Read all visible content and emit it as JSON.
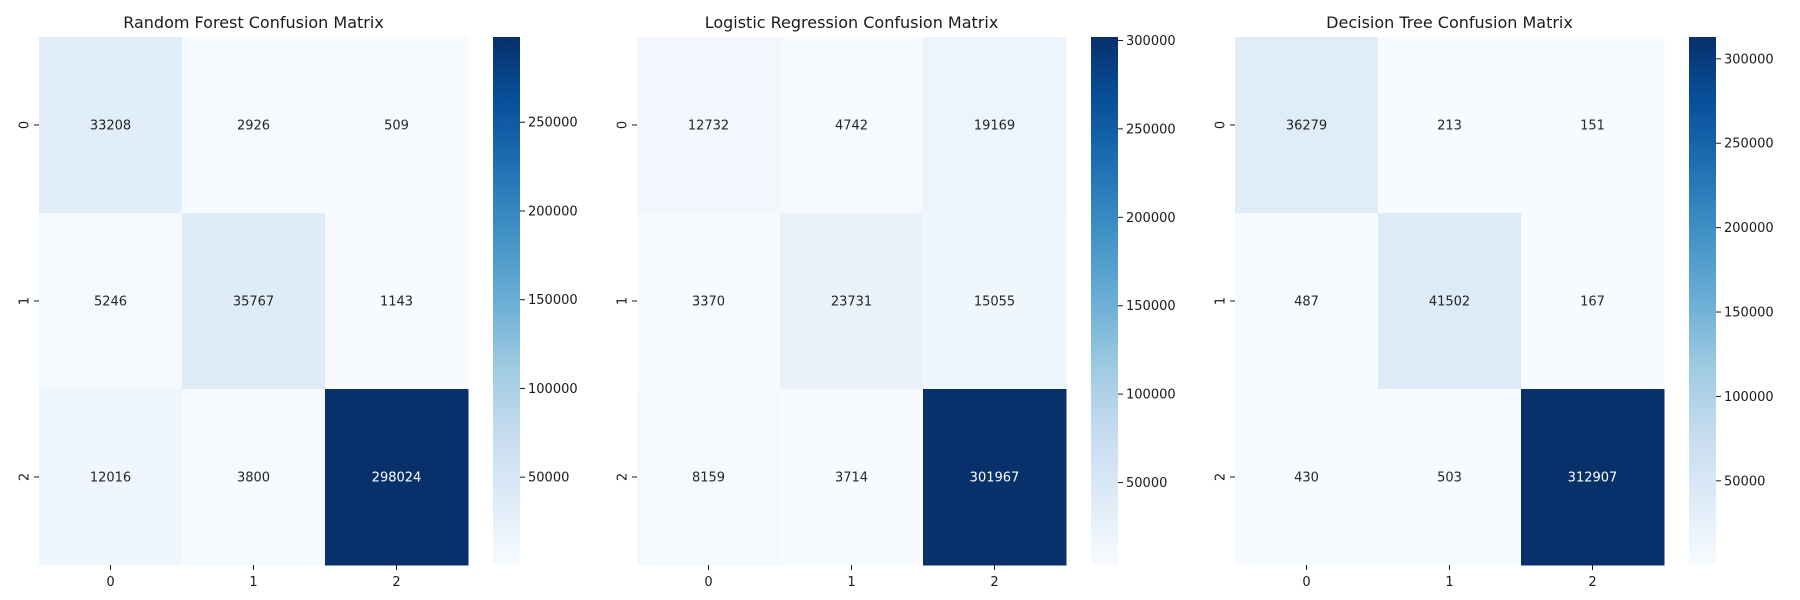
{
  "chart_data": [
    {
      "type": "heatmap",
      "title": "Random Forest Confusion Matrix",
      "xlabel": "",
      "ylabel": "",
      "x_categories": [
        "0",
        "1",
        "2"
      ],
      "y_categories": [
        "0",
        "1",
        "2"
      ],
      "values": [
        [
          33208,
          2926,
          509
        ],
        [
          5246,
          35767,
          1143
        ],
        [
          12016,
          3800,
          298024
        ]
      ],
      "colormap": "Blues",
      "colorbar": {
        "min": 509,
        "max": 298024,
        "ticks": [
          50000,
          100000,
          150000,
          200000,
          250000
        ]
      }
    },
    {
      "type": "heatmap",
      "title": "Logistic Regression Confusion Matrix",
      "xlabel": "",
      "ylabel": "",
      "x_categories": [
        "0",
        "1",
        "2"
      ],
      "y_categories": [
        "0",
        "1",
        "2"
      ],
      "values": [
        [
          12732,
          4742,
          19169
        ],
        [
          3370,
          23731,
          15055
        ],
        [
          8159,
          3714,
          301967
        ]
      ],
      "colormap": "Blues",
      "colorbar": {
        "min": 3370,
        "max": 301967,
        "ticks": [
          50000,
          100000,
          150000,
          200000,
          250000,
          300000
        ]
      }
    },
    {
      "type": "heatmap",
      "title": "Decision Tree Confusion Matrix",
      "xlabel": "",
      "ylabel": "",
      "x_categories": [
        "0",
        "1",
        "2"
      ],
      "y_categories": [
        "0",
        "1",
        "2"
      ],
      "values": [
        [
          36279,
          213,
          151
        ],
        [
          487,
          41502,
          167
        ],
        [
          430,
          503,
          312907
        ]
      ],
      "colormap": "Blues",
      "colorbar": {
        "min": 151,
        "max": 312907,
        "ticks": [
          50000,
          100000,
          150000,
          200000,
          250000,
          300000
        ]
      }
    }
  ]
}
